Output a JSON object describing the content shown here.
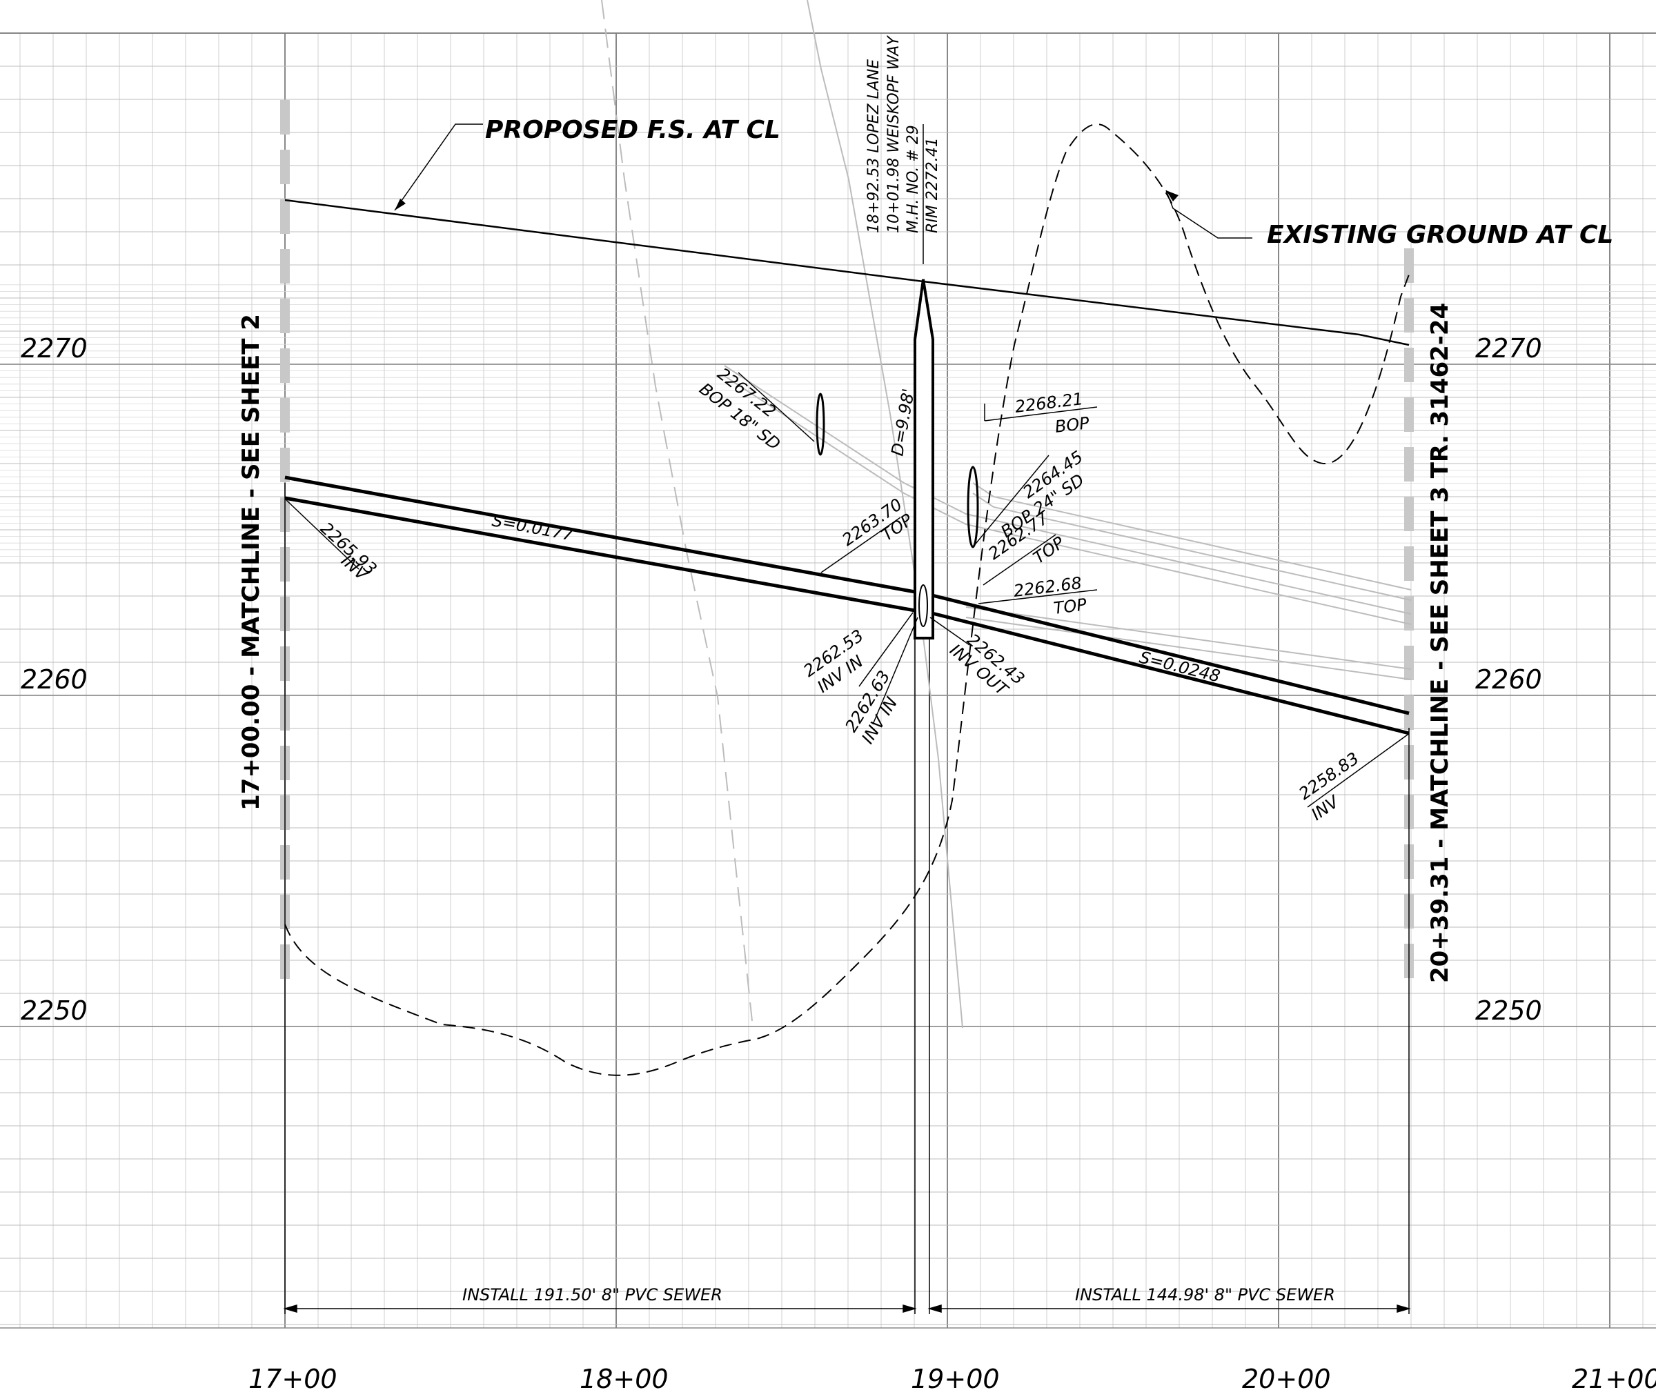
{
  "grid": {
    "elevation_labels": [
      "2270",
      "2260",
      "2250"
    ],
    "station_labels": [
      "17+00",
      "18+00",
      "19+00",
      "20+00",
      "21+00"
    ]
  },
  "callouts": {
    "proposed": "PROPOSED F.S. AT CL",
    "existing": "EXISTING GROUND AT CL"
  },
  "manhole": {
    "line1": "18+92.53 LOPEZ LANE",
    "line2": "10+01.98 WEISKOPF WAY",
    "line3": "M.H. NO. # 29",
    "line4": "RIM 2272.41",
    "depth": "D=9.98'"
  },
  "matchlines": {
    "left": "17+00.00 - MATCHLINE - SEE SHEET 2",
    "right": "20+39.31 - MATCHLINE - SEE SHEET 3 TR. 31462-24"
  },
  "slopes": {
    "left": "S=0.0177",
    "right": "S=0.0248"
  },
  "annotations": {
    "inv_left_val": "2265.93",
    "inv_left_lbl": "INV",
    "sd18_val": "2267.22",
    "sd18_lbl": "BOP 18\" SD",
    "top1_val": "2263.70",
    "top1_lbl": "TOP",
    "bop_val": "2268.21",
    "bop_lbl": "BOP",
    "sd24_val": "2264.45",
    "sd24_lbl": "BOP 24\" SD",
    "top2_val": "2262.77",
    "top2_lbl": "TOP",
    "top3_val": "2262.68",
    "top3_lbl": "TOP",
    "invin1_val": "2262.53",
    "invin1_lbl": "INV IN",
    "invin2_val": "2262.63",
    "invin2_lbl": "INV IN",
    "invout_val": "2262.43",
    "invout_lbl": "INV OUT",
    "inv_right_val": "2258.83",
    "inv_right_lbl": "INV"
  },
  "installs": {
    "left": "INSTALL 191.50' 8\" PVC SEWER",
    "right": "INSTALL 144.98' 8\" PVC SEWER"
  }
}
